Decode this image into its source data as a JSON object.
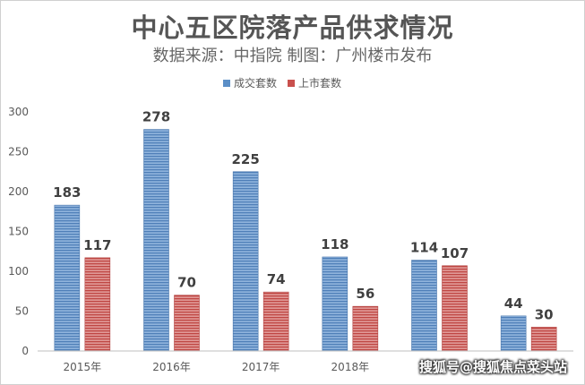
{
  "chart_data": {
    "type": "bar",
    "title": "中心五区院落产品供求情况",
    "subtitle": "数据来源：中指院 制图：广州楼市发布",
    "categories": [
      "2015年",
      "2016年",
      "2017年",
      "2018年",
      "",
      ""
    ],
    "series": [
      {
        "name": "成交套数",
        "values": [
          183,
          278,
          225,
          118,
          114,
          44
        ],
        "color": "#5b8fc7"
      },
      {
        "name": "上市套数",
        "values": [
          117,
          70,
          74,
          56,
          107,
          30
        ],
        "color": "#c9504d"
      }
    ],
    "ylim": [
      0,
      300
    ],
    "yticks": [
      0,
      50,
      100,
      150,
      200,
      250,
      300
    ],
    "legend_position": "top",
    "grid": false
  },
  "watermark": "搜狐号@搜狐焦点菜头站"
}
